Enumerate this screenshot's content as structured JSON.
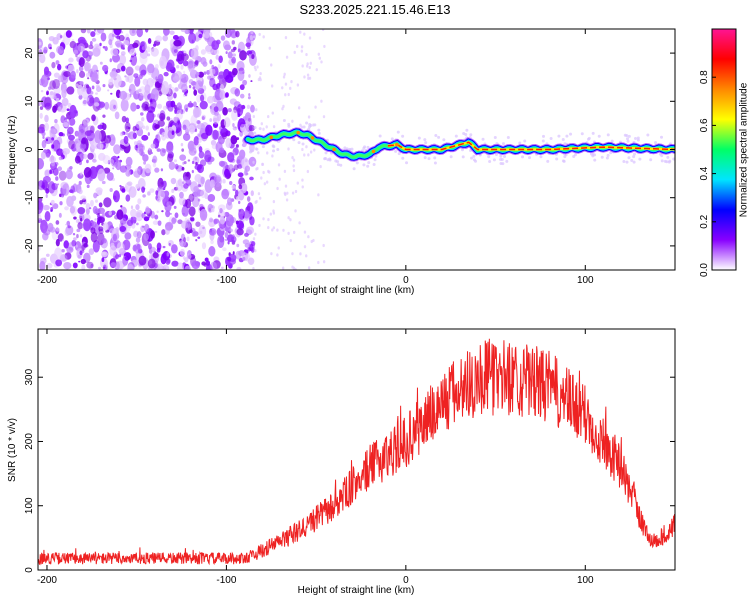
{
  "title": "S233.2025.221.15.46.E13",
  "chart_data": [
    {
      "type": "heatmap",
      "name": "spectrogram",
      "xlabel": "Height of straight line (km)",
      "ylabel": "Frequency (Hz)",
      "xlim": [
        -205,
        150
      ],
      "ylim": [
        -25,
        25
      ],
      "xticks": [
        -200,
        -100,
        0,
        100
      ],
      "yticks": [
        -20,
        -10,
        0,
        10,
        20
      ],
      "noise_region_x": [
        -205,
        -85
      ],
      "signal_region_x": [
        -90,
        150
      ],
      "signal_track": [
        {
          "x": -88,
          "y": 2
        },
        {
          "x": -80,
          "y": 2
        },
        {
          "x": -70,
          "y": 3
        },
        {
          "x": -60,
          "y": 3.5
        },
        {
          "x": -55,
          "y": 3
        },
        {
          "x": -45,
          "y": 1
        },
        {
          "x": -35,
          "y": -1
        },
        {
          "x": -28,
          "y": -1.5
        },
        {
          "x": -20,
          "y": -1
        },
        {
          "x": -15,
          "y": 0.5
        },
        {
          "x": -5,
          "y": 1
        },
        {
          "x": 0,
          "y": 0
        },
        {
          "x": 20,
          "y": 0
        },
        {
          "x": 35,
          "y": 1.5
        },
        {
          "x": 40,
          "y": 0
        },
        {
          "x": 80,
          "y": 0
        },
        {
          "x": 110,
          "y": 0.5
        },
        {
          "x": 150,
          "y": 0
        }
      ],
      "colorbar": {
        "label": "Normalized spectral amplitude",
        "ticks": [
          "0.0",
          "0.2",
          "0.4",
          "0.6",
          "0.8"
        ],
        "range": [
          0,
          1
        ],
        "colors": [
          "#ffffff",
          "#8800ff",
          "#0000ff",
          "#00e5ff",
          "#00ff66",
          "#ffff00",
          "#ff8800",
          "#ff0000",
          "#ff1493"
        ]
      }
    },
    {
      "type": "line",
      "name": "snr",
      "xlabel": "Height of straight line (km)",
      "ylabel": "SNR (10 * v/v)",
      "xlim": [
        -205,
        150
      ],
      "ylim": [
        0,
        375
      ],
      "xticks": [
        -200,
        -100,
        0,
        100
      ],
      "yticks": [
        0,
        100,
        200,
        300
      ],
      "color": "#ee2222",
      "envelope": {
        "x": [
          -205,
          -90,
          -80,
          -60,
          -40,
          -20,
          0,
          20,
          40,
          60,
          80,
          100,
          120,
          135,
          140,
          150
        ],
        "y": [
          18,
          18,
          30,
          60,
          100,
          160,
          200,
          260,
          300,
          300,
          285,
          240,
          160,
          50,
          45,
          70
        ]
      }
    }
  ]
}
